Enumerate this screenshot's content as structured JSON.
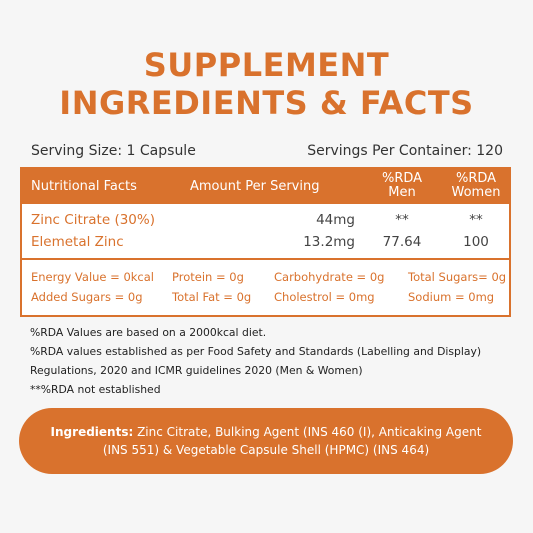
{
  "title": {
    "line1": "SUPPLEMENT",
    "line2": "INGREDIENTS & FACTS"
  },
  "serving": {
    "size": "Serving Size: 1 Capsule",
    "per_container": "Servings Per Container: 120"
  },
  "facts_table": {
    "headers": {
      "nutritional": "Nutritional Facts",
      "amount": "Amount Per Serving",
      "rda_men_line1": "%RDA",
      "rda_men_line2": "Men",
      "rda_women_line1": "%RDA",
      "rda_women_line2": "Women"
    },
    "rows": [
      {
        "name": "Zinc Citrate (30%)",
        "amount": "44mg",
        "men": "**",
        "women": "**"
      },
      {
        "name": "Elemetal Zinc",
        "amount": "13.2mg",
        "men": "77.64",
        "women": "100"
      }
    ],
    "nutrients": [
      [
        "Energy Value = 0kcal",
        "Protein = 0g",
        "Carbohydrate = 0g",
        "Total Sugars= 0g"
      ],
      [
        "Added Sugars = 0g",
        "Total Fat = 0g",
        "Cholestrol = 0mg",
        "Sodium = 0mg"
      ]
    ]
  },
  "notes": [
    "%RDA Values are based on a 2000kcal diet.",
    "%RDA values established as per Food Safety and Standards (Labelling and Display)",
    "Regulations, 2020 and ICMR guidelines 2020 (Men & Women)",
    "**%RDA not established"
  ],
  "ingredients": {
    "label": "Ingredients:",
    "text": " Zinc Citrate, Bulking Agent (INS 460 (I), Anticaking Agent (INS 551) & Vegetable Capsule Shell (HPMC) (INS 464)"
  },
  "colors": {
    "accent": "#d9722d",
    "background": "#f6f6f6"
  }
}
